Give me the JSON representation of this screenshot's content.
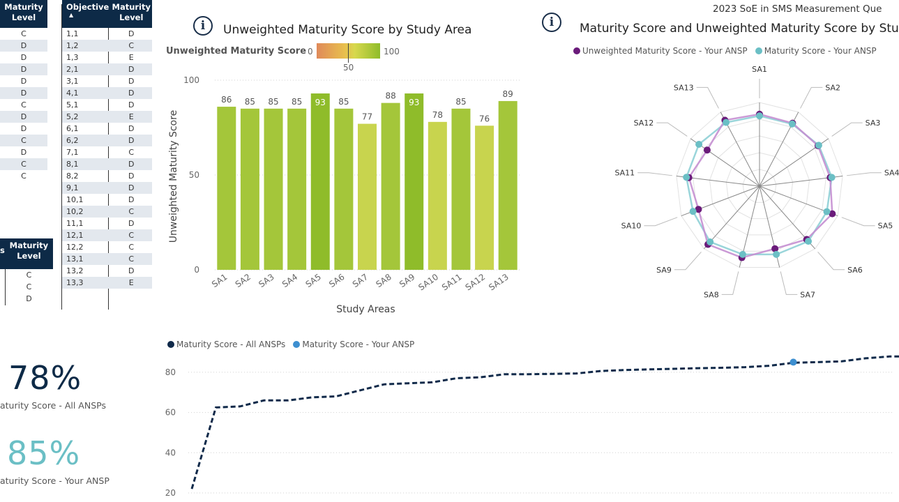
{
  "header": {
    "report_title": "2023 SoE in SMS Measurement Que"
  },
  "table1": {
    "header": "Maturity Level",
    "rows": [
      "C",
      "D",
      "D",
      "D",
      "D",
      "D",
      "C",
      "D",
      "D",
      "C",
      "D",
      "C",
      "C"
    ]
  },
  "table2": {
    "headers": {
      "objective": "Objective",
      "level": "Maturity Level",
      "sort_glyph": "▲"
    },
    "rows": [
      [
        "1,1",
        "D"
      ],
      [
        "1,2",
        "C"
      ],
      [
        "1,3",
        "E"
      ],
      [
        "2,1",
        "D"
      ],
      [
        "3,1",
        "D"
      ],
      [
        "4,1",
        "D"
      ],
      [
        "5,1",
        "D"
      ],
      [
        "5,2",
        "E"
      ],
      [
        "6,1",
        "D"
      ],
      [
        "6,2",
        "D"
      ],
      [
        "7,1",
        "C"
      ],
      [
        "8,1",
        "D"
      ],
      [
        "8,2",
        "D"
      ],
      [
        "9,1",
        "D"
      ],
      [
        "10,1",
        "D"
      ],
      [
        "10,2",
        "C"
      ],
      [
        "11,1",
        "D"
      ],
      [
        "12,1",
        "C"
      ],
      [
        "12,2",
        "C"
      ],
      [
        "13,1",
        "C"
      ],
      [
        "13,2",
        "D"
      ],
      [
        "13,3",
        "E"
      ]
    ]
  },
  "table3": {
    "header_left": "s",
    "header": "Maturity Level",
    "rows": [
      "C",
      "C",
      "D"
    ]
  },
  "kpis": {
    "all_value": "78%",
    "all_label": "aturity Score - All ANSPs",
    "your_value": "85%",
    "your_label": "aturity Score - Your ANSP"
  },
  "colors": {
    "navy": "#0d2a47",
    "teal": "#6bbfc5",
    "purple": "#6a1b7a",
    "bar_default": "#a4c63a",
    "bar_high": "#8fbc2a",
    "bar_low": "#c8d44e",
    "dash_line": "#102a4a",
    "your_dot": "#3d8fd0"
  },
  "bar_panel": {
    "title": "Unweighted Maturity Score by Study Area",
    "icon": "info-icon",
    "gradient_legend": {
      "label": "Unweighted Maturity Score",
      "min": "0",
      "mid": "50",
      "max": "100"
    }
  },
  "radar_panel": {
    "title": "Maturity Score and Unweighted Maturity Score by Stu",
    "icon": "info-icon"
  },
  "chart_data": [
    {
      "type": "bar",
      "title": "Unweighted Maturity Score by Study Area",
      "xlabel": "Study Areas",
      "ylabel": "Unweighted Maturity Score",
      "ylim": [
        0,
        100
      ],
      "yticks": [
        "0",
        "50",
        "100"
      ],
      "categories": [
        "SA1",
        "SA2",
        "SA3",
        "SA4",
        "SA5",
        "SA6",
        "SA7",
        "SA8",
        "SA9",
        "SA10",
        "SA11",
        "SA12",
        "SA13"
      ],
      "values": [
        86,
        85,
        85,
        85,
        93,
        85,
        77,
        88,
        93,
        78,
        85,
        76,
        89
      ],
      "gridlines": true
    },
    {
      "type": "radar",
      "title": "Maturity Score and Unweighted Maturity Score by Stu",
      "categories": [
        "SA1",
        "SA2",
        "SA3",
        "SA4",
        "SA5",
        "SA6",
        "SA7",
        "SA8",
        "SA9",
        "SA10",
        "SA11",
        "SA12",
        "SA13"
      ],
      "legend_position": "top",
      "series": [
        {
          "name": "Unweighted Maturity Score - Your ANSP",
          "values": [
            86,
            85,
            85,
            85,
            93,
            85,
            77,
            88,
            93,
            78,
            85,
            76,
            89
          ]
        },
        {
          "name": "Maturity Score - Your ANSP",
          "values": [
            84,
            84,
            86,
            87,
            86,
            88,
            84,
            84,
            89,
            85,
            88,
            88,
            86
          ]
        }
      ]
    },
    {
      "type": "line",
      "legend_position": "top-left",
      "ylim": [
        20,
        90
      ],
      "yticks": [
        "20",
        "40",
        "60",
        "80"
      ],
      "series": [
        {
          "name": "Maturity Score - All ANSPs",
          "values": [
            22,
            62.5,
            63,
            66,
            66,
            67.5,
            68,
            71,
            74,
            74.5,
            75,
            77,
            77.5,
            79,
            79,
            79.2,
            79.4,
            80.6,
            81.1,
            81.4,
            81.7,
            82,
            82.2,
            82.5,
            83.2,
            84.7,
            85,
            85.4,
            86.9,
            87.8,
            87.8
          ]
        },
        {
          "name": "Maturity Score - Your ANSP",
          "highlight_index": 25,
          "value": 85
        }
      ]
    }
  ]
}
